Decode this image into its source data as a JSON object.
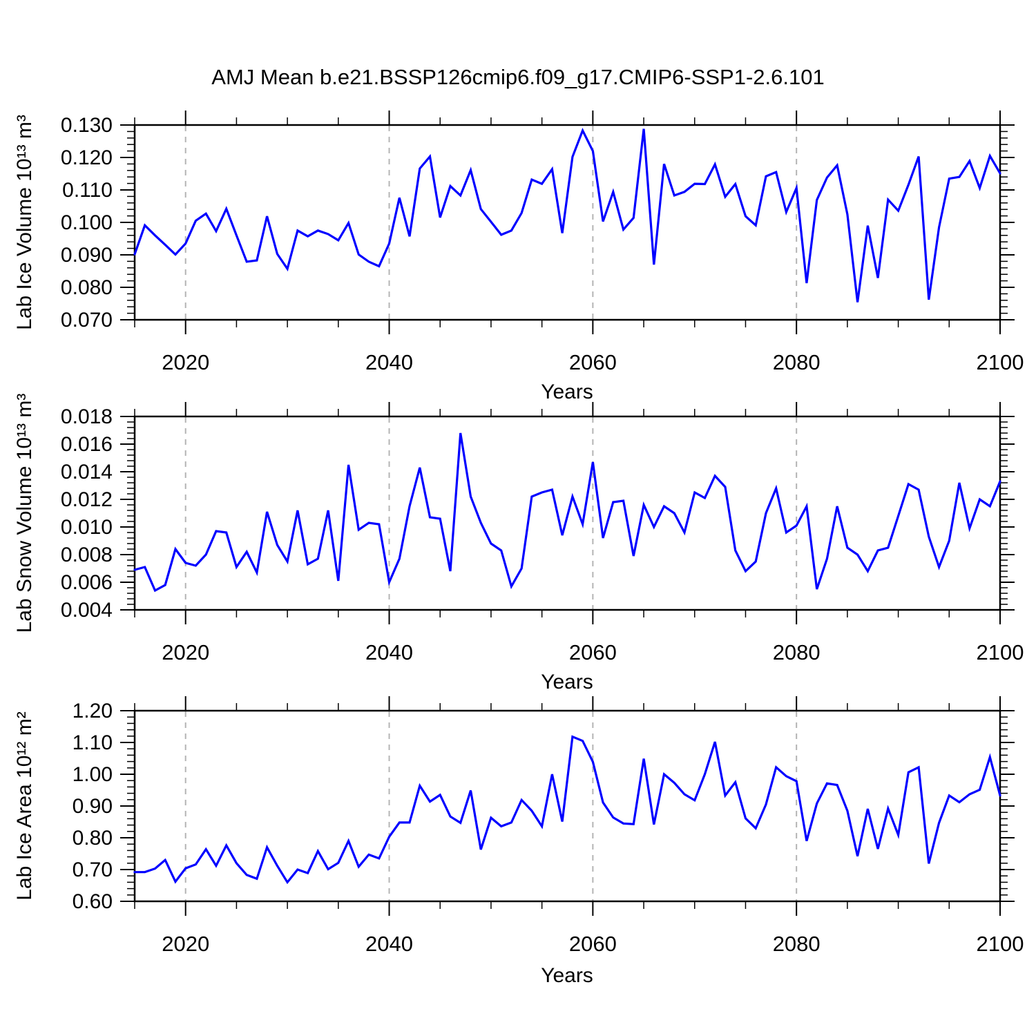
{
  "title": "AMJ Mean b.e21.BSSP126cmip6.f09_g17.CMIP6-SSP1-2.6.101",
  "colors": {
    "line": "#0000ff",
    "grid": "#b4b4b4",
    "axis": "#000000"
  },
  "years": [
    2015,
    2016,
    2017,
    2018,
    2019,
    2020,
    2021,
    2022,
    2023,
    2024,
    2025,
    2026,
    2027,
    2028,
    2029,
    2030,
    2031,
    2032,
    2033,
    2034,
    2035,
    2036,
    2037,
    2038,
    2039,
    2040,
    2041,
    2042,
    2043,
    2044,
    2045,
    2046,
    2047,
    2048,
    2049,
    2050,
    2051,
    2052,
    2053,
    2054,
    2055,
    2056,
    2057,
    2058,
    2059,
    2060,
    2061,
    2062,
    2063,
    2064,
    2065,
    2066,
    2067,
    2068,
    2069,
    2070,
    2071,
    2072,
    2073,
    2074,
    2075,
    2076,
    2077,
    2078,
    2079,
    2080,
    2081,
    2082,
    2083,
    2084,
    2085,
    2086,
    2087,
    2088,
    2089,
    2090,
    2091,
    2092,
    2093,
    2094,
    2095,
    2096,
    2097,
    2098,
    2099,
    2100
  ],
  "chart_data": [
    {
      "type": "line",
      "ylabel": "Lab Ice Volume 10¹³ m³",
      "xlabel": "Years",
      "xlim": [
        2015,
        2100
      ],
      "ylim": [
        0.07,
        0.13
      ],
      "yticks": [
        0.13,
        0.12,
        0.11,
        0.1,
        0.09,
        0.08,
        0.07
      ],
      "ytick_labels": [
        "0.130",
        "0.120",
        "0.110",
        "0.100",
        "0.090",
        "0.080",
        "0.070"
      ],
      "yminor_step": 0.002,
      "xticks": [
        2020,
        2040,
        2060,
        2080,
        2100
      ],
      "xtick_labels": [
        "2020",
        "2040",
        "2060",
        "2080",
        "2100"
      ],
      "xminor_step": 5,
      "grid_x": [
        2020,
        2040,
        2060,
        2080
      ],
      "grid_on": "x-dashed",
      "legend": "none",
      "values": [
        0.0902,
        0.0991,
        0.096,
        0.0931,
        0.0901,
        0.0935,
        0.1005,
        0.1027,
        0.0973,
        0.1042,
        0.096,
        0.0879,
        0.0883,
        0.1019,
        0.0903,
        0.0857,
        0.0975,
        0.0957,
        0.0975,
        0.0964,
        0.0945,
        0.0998,
        0.0901,
        0.0879,
        0.0865,
        0.0935,
        0.1076,
        0.0957,
        0.1166,
        0.1203,
        0.1015,
        0.1112,
        0.1083,
        0.1161,
        0.1041,
        0.1002,
        0.0962,
        0.0975,
        0.1029,
        0.1132,
        0.1119,
        0.1164,
        0.0967,
        0.1202,
        0.1283,
        0.122,
        0.1003,
        0.1094,
        0.0978,
        0.1014,
        0.1288,
        0.087,
        0.118,
        0.1083,
        0.1094,
        0.1119,
        0.1118,
        0.1179,
        0.1079,
        0.1118,
        0.1019,
        0.0991,
        0.1142,
        0.1155,
        0.1032,
        0.1106,
        0.0813,
        0.1069,
        0.1138,
        0.1176,
        0.1025,
        0.0754,
        0.099,
        0.0829,
        0.107,
        0.1036,
        0.1116,
        0.1203,
        0.0762,
        0.0985,
        0.1135,
        0.114,
        0.1189,
        0.1106,
        0.1205,
        0.1151
      ]
    },
    {
      "type": "line",
      "ylabel": "Lab Snow Volume 10¹³ m³",
      "xlabel": "Years",
      "xlim": [
        2015,
        2100
      ],
      "ylim": [
        0.004,
        0.018
      ],
      "yticks": [
        0.018,
        0.016,
        0.014,
        0.012,
        0.01,
        0.008,
        0.006,
        0.004
      ],
      "ytick_labels": [
        "0.018",
        "0.016",
        "0.014",
        "0.012",
        "0.010",
        "0.008",
        "0.006",
        "0.004"
      ],
      "yminor_step": 0.0004,
      "xticks": [
        2020,
        2040,
        2060,
        2080,
        2100
      ],
      "xtick_labels": [
        "2020",
        "2040",
        "2060",
        "2080",
        "2100"
      ],
      "xminor_step": 5,
      "grid_x": [
        2020,
        2040,
        2060,
        2080
      ],
      "grid_on": "x-dashed",
      "legend": "none",
      "values": [
        0.0069,
        0.0071,
        0.0054,
        0.0058,
        0.0084,
        0.0074,
        0.0072,
        0.008,
        0.0097,
        0.0096,
        0.0071,
        0.0082,
        0.0067,
        0.0111,
        0.0087,
        0.0075,
        0.0112,
        0.0073,
        0.0077,
        0.0112,
        0.0061,
        0.0145,
        0.0098,
        0.0103,
        0.0102,
        0.006,
        0.0077,
        0.0115,
        0.0143,
        0.0107,
        0.0106,
        0.0068,
        0.0168,
        0.0122,
        0.0103,
        0.0088,
        0.0083,
        0.0057,
        0.007,
        0.0122,
        0.0125,
        0.0127,
        0.0094,
        0.0122,
        0.0102,
        0.0147,
        0.0092,
        0.0118,
        0.0119,
        0.0079,
        0.0116,
        0.01,
        0.0115,
        0.011,
        0.0096,
        0.0125,
        0.0121,
        0.0137,
        0.0129,
        0.0083,
        0.0068,
        0.0075,
        0.011,
        0.0128,
        0.0096,
        0.0101,
        0.0115,
        0.0055,
        0.0077,
        0.0115,
        0.0085,
        0.008,
        0.0068,
        0.0083,
        0.0085,
        0.0108,
        0.0131,
        0.0127,
        0.0093,
        0.0071,
        0.009,
        0.0132,
        0.0099,
        0.012,
        0.0115,
        0.0133
      ]
    },
    {
      "type": "line",
      "ylabel": "Lab Ice Area 10¹² m²",
      "xlabel": "Years",
      "xlim": [
        2015,
        2100
      ],
      "ylim": [
        0.6,
        1.2
      ],
      "yticks": [
        1.2,
        1.1,
        1.0,
        0.9,
        0.8,
        0.7,
        0.6
      ],
      "ytick_labels": [
        "1.20",
        "1.10",
        "1.00",
        "0.90",
        "0.80",
        "0.70",
        "0.60"
      ],
      "yminor_step": 0.02,
      "xticks": [
        2020,
        2040,
        2060,
        2080,
        2100
      ],
      "xtick_labels": [
        "2020",
        "2040",
        "2060",
        "2080",
        "2100"
      ],
      "xminor_step": 5,
      "grid_x": [
        2020,
        2040,
        2060,
        2080
      ],
      "grid_on": "x-dashed",
      "legend": "none",
      "values": [
        0.692,
        0.692,
        0.703,
        0.73,
        0.662,
        0.704,
        0.716,
        0.764,
        0.712,
        0.776,
        0.72,
        0.683,
        0.671,
        0.77,
        0.712,
        0.66,
        0.7,
        0.689,
        0.758,
        0.701,
        0.721,
        0.79,
        0.709,
        0.747,
        0.735,
        0.803,
        0.848,
        0.848,
        0.964,
        0.914,
        0.935,
        0.867,
        0.847,
        0.949,
        0.763,
        0.863,
        0.836,
        0.848,
        0.919,
        0.885,
        0.836,
        1.0,
        0.851,
        1.118,
        1.105,
        1.039,
        0.911,
        0.864,
        0.845,
        0.843,
        1.049,
        0.842,
        1.0,
        0.973,
        0.937,
        0.918,
        1.0,
        1.102,
        0.933,
        0.975,
        0.861,
        0.83,
        0.905,
        1.022,
        0.994,
        0.978,
        0.79,
        0.908,
        0.971,
        0.966,
        0.885,
        0.742,
        0.891,
        0.765,
        0.892,
        0.809,
        1.006,
        1.022,
        0.719,
        0.847,
        0.933,
        0.912,
        0.937,
        0.951,
        1.054,
        0.933
      ]
    }
  ]
}
